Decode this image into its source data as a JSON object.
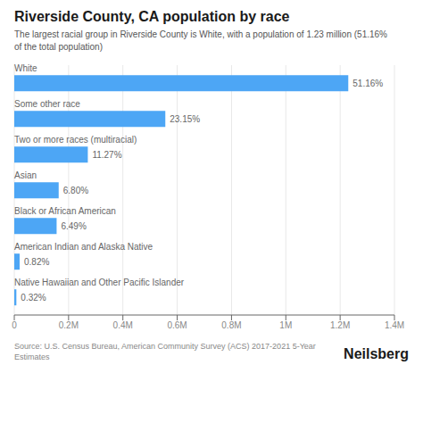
{
  "chart_data": {
    "type": "bar",
    "orientation": "horizontal",
    "title": "Riverside County, CA population by race",
    "subtitle": "The largest racial group in Riverside County is White, with a population of 1.23 million (51.16%\nof the total population)",
    "categories": [
      "White",
      "Some other race",
      "Two or more races (multiracial)",
      "Asian",
      "Black or African American",
      "American Indian and Alaska Native",
      "Native Hawaiian and Other Pacific Islander"
    ],
    "values": [
      1230000,
      556200,
      270800,
      163500,
      155900,
      19700,
      7700
    ],
    "percentages": [
      "51.16%",
      "23.15%",
      "11.27%",
      "6.80%",
      "6.49%",
      "0.82%",
      "0.32%"
    ],
    "color": "#4DA6F5",
    "xlim": [
      0,
      1400000
    ],
    "xticks": [
      0,
      {
        "value": 200000,
        "label": "0.2M"
      },
      {
        "value": 400000,
        "label": "0.4M"
      },
      {
        "value": 600000,
        "label": "0.6M"
      },
      {
        "value": 800000,
        "label": "0.8M"
      },
      {
        "value": 1000000,
        "label": "1M"
      },
      {
        "value": 1200000,
        "label": "1.2M"
      },
      {
        "value": 1400000,
        "label": "1.4M"
      }
    ],
    "grid": true,
    "tick_labels": "x",
    "source": "Source: U.S. Census Bureau, American Community Survey (ACS) 2017-2021 5-Year Estimates",
    "brand": "Neilsberg"
  }
}
